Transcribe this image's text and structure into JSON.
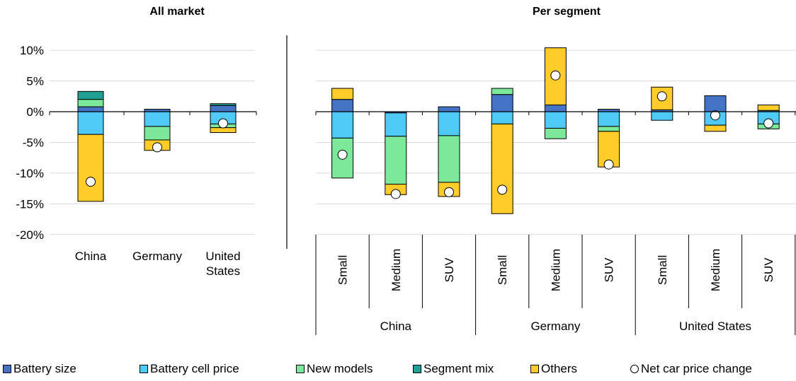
{
  "colors": {
    "battery_size": "#4472C4",
    "battery_cell_price": "#4FC9F5",
    "new_models": "#7CE89A",
    "segment_mix": "#1FA092",
    "others": "#FFCC29",
    "marker": "#FFFFFF",
    "gridline": "#D9D9D9"
  },
  "panels": {
    "left_title": "All market",
    "right_title": "Per segment"
  },
  "legend": [
    {
      "key": "battery_size",
      "label": "Battery size",
      "kind": "square"
    },
    {
      "key": "battery_cell_price",
      "label": "Battery cell price",
      "kind": "square"
    },
    {
      "key": "new_models",
      "label": "New models",
      "kind": "square"
    },
    {
      "key": "segment_mix",
      "label": "Segment mix",
      "kind": "square"
    },
    {
      "key": "others",
      "label": "Others",
      "kind": "square"
    },
    {
      "key": "marker",
      "label": "Net car price change",
      "kind": "circle"
    }
  ],
  "chart_data": [
    {
      "type": "bar",
      "stacked": true,
      "title": "All market",
      "categories": [
        "China",
        "Germany",
        "United States"
      ],
      "category_lines": [
        [
          "China"
        ],
        [
          "Germany"
        ],
        [
          "United",
          "States"
        ]
      ],
      "ylim": [
        -20,
        10
      ],
      "yticks": [
        "10%",
        "5%",
        "0%",
        "-5%",
        "-10%",
        "-15%",
        "-20%"
      ],
      "grid": true,
      "series": [
        {
          "name": "Battery size",
          "key": "battery_size",
          "values": [
            0.8,
            0.4,
            1.0
          ]
        },
        {
          "name": "Battery cell price",
          "key": "battery_cell_price",
          "values": [
            -3.7,
            -2.4,
            -2.0
          ]
        },
        {
          "name": "New models",
          "key": "new_models",
          "values": [
            1.2,
            -2.2,
            -0.6
          ]
        },
        {
          "name": "Segment mix",
          "key": "segment_mix",
          "values": [
            1.3,
            0.0,
            0.3
          ]
        },
        {
          "name": "Others",
          "key": "others",
          "values": [
            -10.9,
            -1.7,
            -0.8
          ]
        }
      ],
      "net": {
        "name": "Net car price change",
        "values": [
          -11.4,
          -5.8,
          -1.9
        ]
      }
    },
    {
      "type": "bar",
      "stacked": true,
      "title": "Per segment",
      "categories": [
        "Small",
        "Medium",
        "SUV",
        "Small",
        "Medium",
        "SUV",
        "Small",
        "Medium",
        "SUV"
      ],
      "groups": [
        {
          "label": "China",
          "size": 3
        },
        {
          "label": "Germany",
          "size": 3
        },
        {
          "label": "United States",
          "size": 3
        }
      ],
      "ylim": [
        -20,
        10
      ],
      "grid": true,
      "series": [
        {
          "name": "Battery size",
          "key": "battery_size",
          "values": [
            2.0,
            -0.2,
            0.8,
            2.8,
            1.1,
            0.4,
            0.3,
            2.6,
            0.2
          ]
        },
        {
          "name": "Battery cell price",
          "key": "battery_cell_price",
          "values": [
            -4.3,
            -3.8,
            -3.9,
            -2.0,
            -2.7,
            -2.4,
            -1.4,
            -2.2,
            -2.0
          ]
        },
        {
          "name": "New models",
          "key": "new_models",
          "values": [
            -6.5,
            -7.8,
            -7.6,
            1.0,
            -1.7,
            -0.8,
            0.0,
            0.0,
            -0.8
          ]
        },
        {
          "name": "Segment mix",
          "key": "segment_mix",
          "values": [
            0,
            0,
            0,
            0,
            0,
            0,
            0,
            0,
            0
          ]
        },
        {
          "name": "Others",
          "key": "others",
          "values": [
            1.8,
            -1.7,
            -2.3,
            -14.6,
            9.3,
            -5.8,
            3.7,
            -1.0,
            0.9
          ]
        }
      ],
      "net": {
        "name": "Net car price change",
        "values": [
          -7.0,
          -13.4,
          -13.1,
          -12.7,
          5.9,
          -8.6,
          2.5,
          -0.6,
          -1.9
        ]
      }
    }
  ]
}
